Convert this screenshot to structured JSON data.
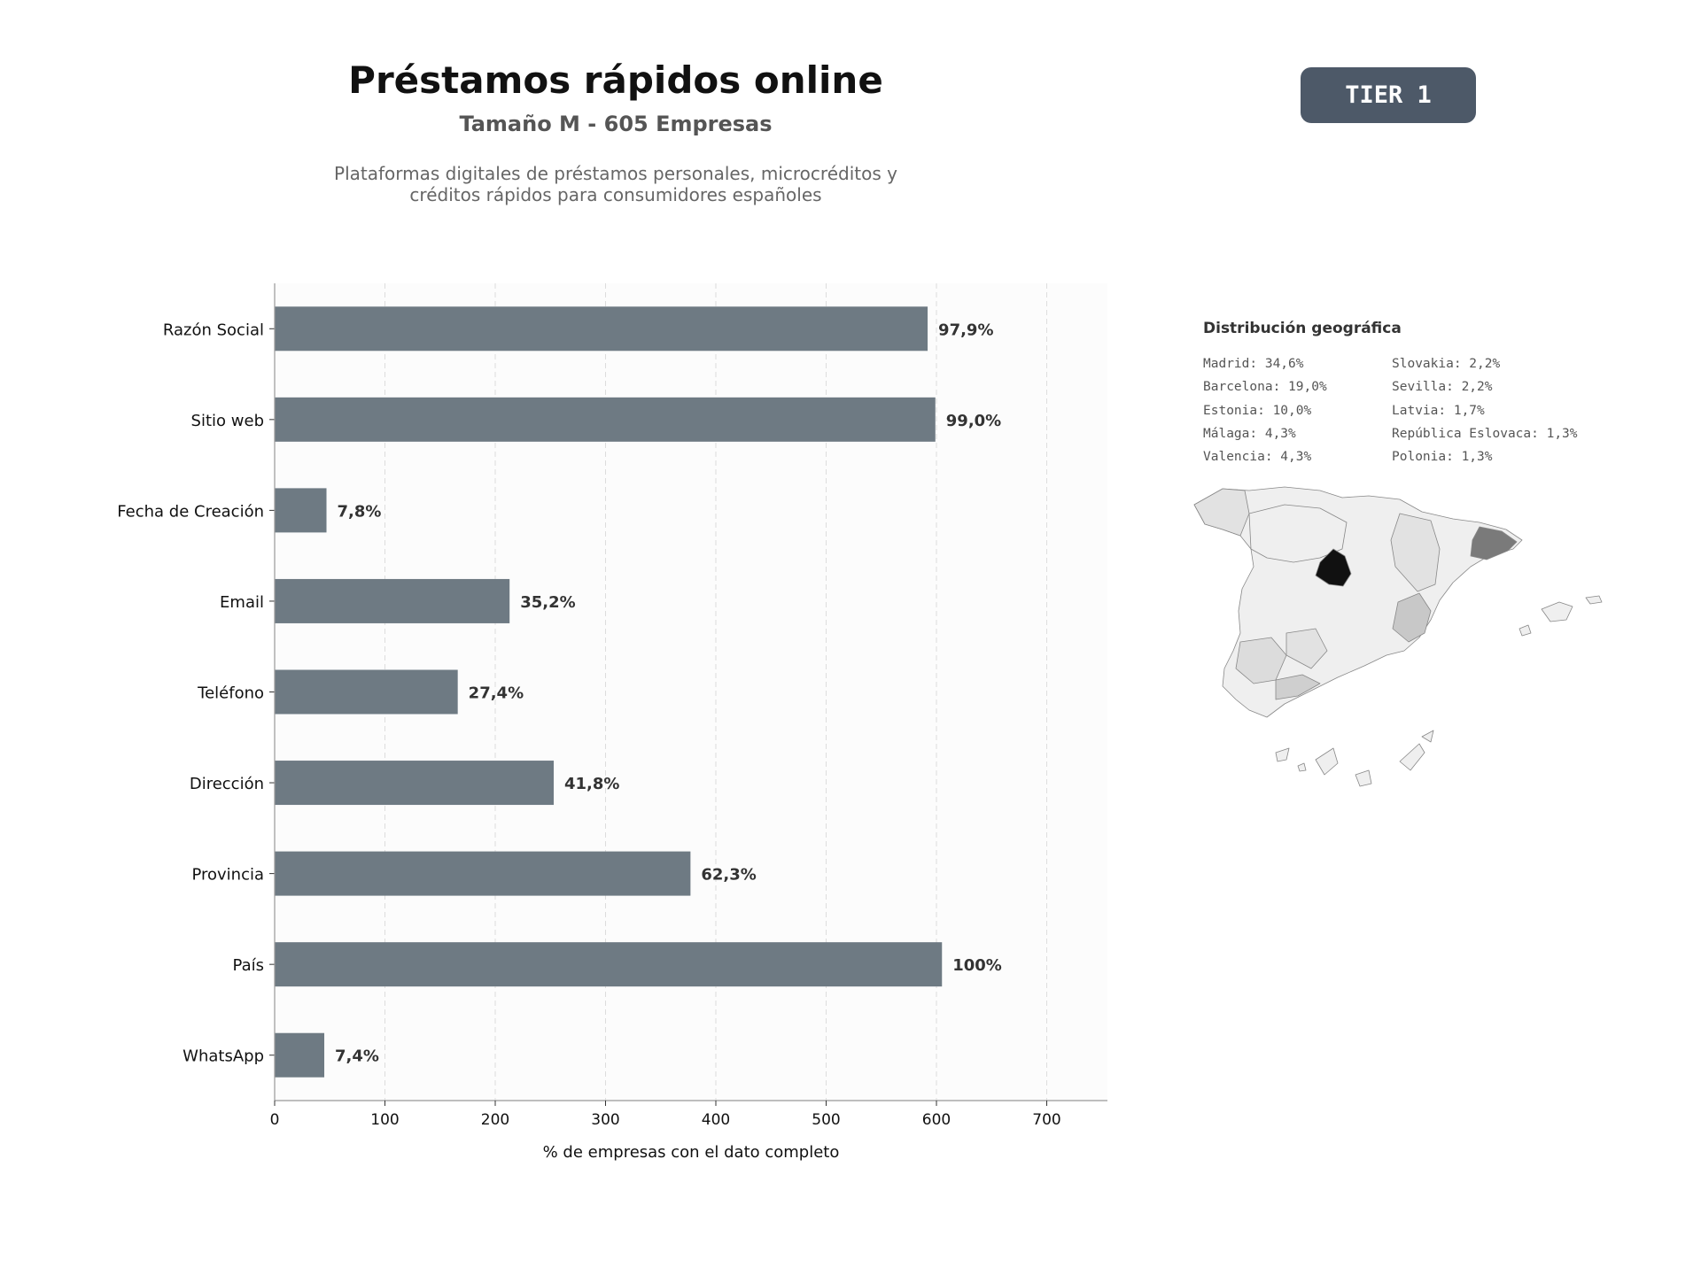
{
  "header": {
    "title": "Préstamos rápidos online",
    "subtitle": "Tamaño M - 605 Empresas",
    "description_line1": "Plataformas digitales de préstamos personales, microcréditos y",
    "description_line2": "créditos rápidos para consumidores españoles",
    "tier_badge": "TIER 1"
  },
  "chart_data": {
    "type": "bar",
    "orientation": "horizontal",
    "categories": [
      "Razón Social",
      "Sitio web",
      "Fecha de Creación",
      "Email",
      "Teléfono",
      "Dirección",
      "Provincia",
      "País",
      "WhatsApp"
    ],
    "values": [
      592,
      599,
      47,
      213,
      166,
      253,
      377,
      605,
      45
    ],
    "data_labels": [
      "97,9%",
      "99,0%",
      "7,8%",
      "35,2%",
      "27,4%",
      "41,8%",
      "62,3%",
      "100%",
      "7,4%"
    ],
    "xlabel": "% de empresas con el dato completo",
    "ylabel": "",
    "xlim": [
      0,
      755
    ],
    "xticks": [
      0,
      100,
      200,
      300,
      400,
      500,
      600,
      700
    ],
    "grid": true,
    "bar_color": "#6e7a83"
  },
  "geo": {
    "title": "Distribución geográfica",
    "col1": [
      "Madrid: 34,6%",
      "Barcelona: 19,0%",
      "Estonia: 10,0%",
      "Málaga: 4,3%",
      "Valencia: 4,3%"
    ],
    "col2": [
      "Slovakia: 2,2%",
      "Sevilla: 2,2%",
      "Latvia: 1,7%",
      "República Eslovaca: 1,3%",
      "Polonia: 1,3%"
    ]
  },
  "map_colors": {
    "madrid": "#111111",
    "barcelona": "#7a7a7a",
    "valencia": "#c8c8c8",
    "malaga": "#cfcfcf",
    "sevilla": "#dcdcdc",
    "default": "#efefef",
    "light": "#e2e2e2"
  }
}
